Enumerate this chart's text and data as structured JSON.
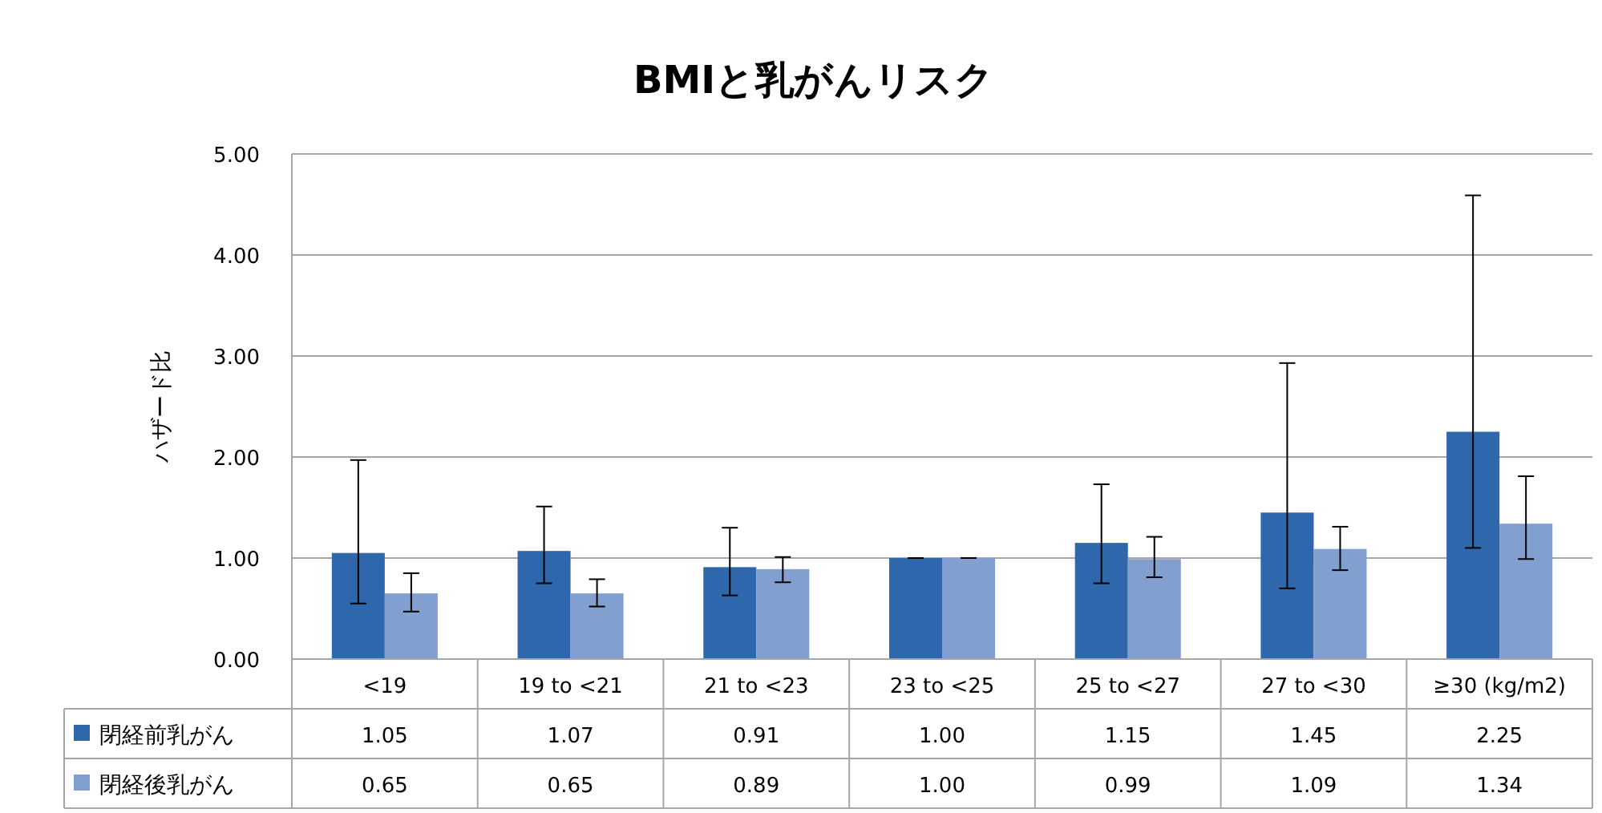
{
  "chart_data": {
    "type": "bar",
    "title": "BMIと乳がんリスク",
    "ylabel": "ハザード比",
    "categories": [
      "<19",
      "19 to <21",
      "21 to <23",
      "23 to <25",
      "25 to <27",
      "27 to <30",
      "≥30 (kg/m2)"
    ],
    "series": [
      {
        "name": "閉経前乳がん",
        "color": "#2f67ad",
        "values": [
          1.05,
          1.07,
          0.91,
          1.0,
          1.15,
          1.45,
          2.25
        ],
        "value_labels": [
          "1.05",
          "1.07",
          "0.91",
          "1.00",
          "1.15",
          "1.45",
          "2.25"
        ],
        "errors": [
          [
            0.55,
            1.97
          ],
          [
            0.75,
            1.51
          ],
          [
            0.63,
            1.3
          ],
          [
            1.0,
            1.0
          ],
          [
            0.75,
            1.73
          ],
          [
            0.7,
            2.93
          ],
          [
            1.1,
            4.59
          ]
        ]
      },
      {
        "name": "閉経後乳がん",
        "color": "#819fcf",
        "values": [
          0.65,
          0.65,
          0.89,
          1.0,
          0.99,
          1.09,
          1.34
        ],
        "value_labels": [
          "0.65",
          "0.65",
          "0.89",
          "1.00",
          "0.99",
          "1.09",
          "1.34"
        ],
        "errors": [
          [
            0.47,
            0.85
          ],
          [
            0.52,
            0.79
          ],
          [
            0.76,
            1.01
          ],
          [
            1.0,
            1.0
          ],
          [
            0.81,
            1.21
          ],
          [
            0.88,
            1.31
          ],
          [
            0.99,
            1.81
          ]
        ]
      }
    ],
    "ylim": [
      0,
      5
    ],
    "yticks": [
      {
        "value": 0,
        "label": "0.00"
      },
      {
        "value": 1,
        "label": "1.00"
      },
      {
        "value": 2,
        "label": "2.00"
      },
      {
        "value": 3,
        "label": "3.00"
      },
      {
        "value": 4,
        "label": "4.00"
      },
      {
        "value": 5,
        "label": "5.00"
      }
    ],
    "grid": "y",
    "legend": "bottom"
  }
}
